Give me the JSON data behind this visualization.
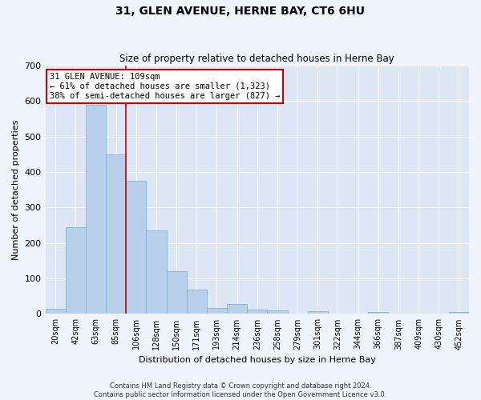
{
  "title": "31, GLEN AVENUE, HERNE BAY, CT6 6HU",
  "subtitle": "Size of property relative to detached houses in Herne Bay",
  "xlabel": "Distribution of detached houses by size in Herne Bay",
  "ylabel": "Number of detached properties",
  "categories": [
    "20sqm",
    "42sqm",
    "63sqm",
    "85sqm",
    "106sqm",
    "128sqm",
    "150sqm",
    "171sqm",
    "193sqm",
    "214sqm",
    "236sqm",
    "258sqm",
    "279sqm",
    "301sqm",
    "322sqm",
    "344sqm",
    "366sqm",
    "387sqm",
    "409sqm",
    "430sqm",
    "452sqm"
  ],
  "values": [
    15,
    245,
    590,
    450,
    375,
    235,
    120,
    68,
    17,
    28,
    12,
    9,
    0,
    8,
    0,
    0,
    5,
    0,
    0,
    0,
    5
  ],
  "bar_color": "#b8d0ea",
  "bar_edge_color": "#7aaad0",
  "property_line_index": 4,
  "annotation_line1": "31 GLEN AVENUE: 109sqm",
  "annotation_line2": "← 61% of detached houses are smaller (1,323)",
  "annotation_line3": "38% of semi-detached houses are larger (827) →",
  "annotation_box_color": "#cc0000",
  "property_line_color": "#cc0000",
  "background_color": "#dce6f5",
  "grid_color": "#ffffff",
  "fig_background": "#f0f4fc",
  "footer_line1": "Contains HM Land Registry data © Crown copyright and database right 2024.",
  "footer_line2": "Contains public sector information licensed under the Open Government Licence v3.0.",
  "ylim": [
    0,
    700
  ],
  "yticks": [
    0,
    100,
    200,
    300,
    400,
    500,
    600,
    700
  ]
}
